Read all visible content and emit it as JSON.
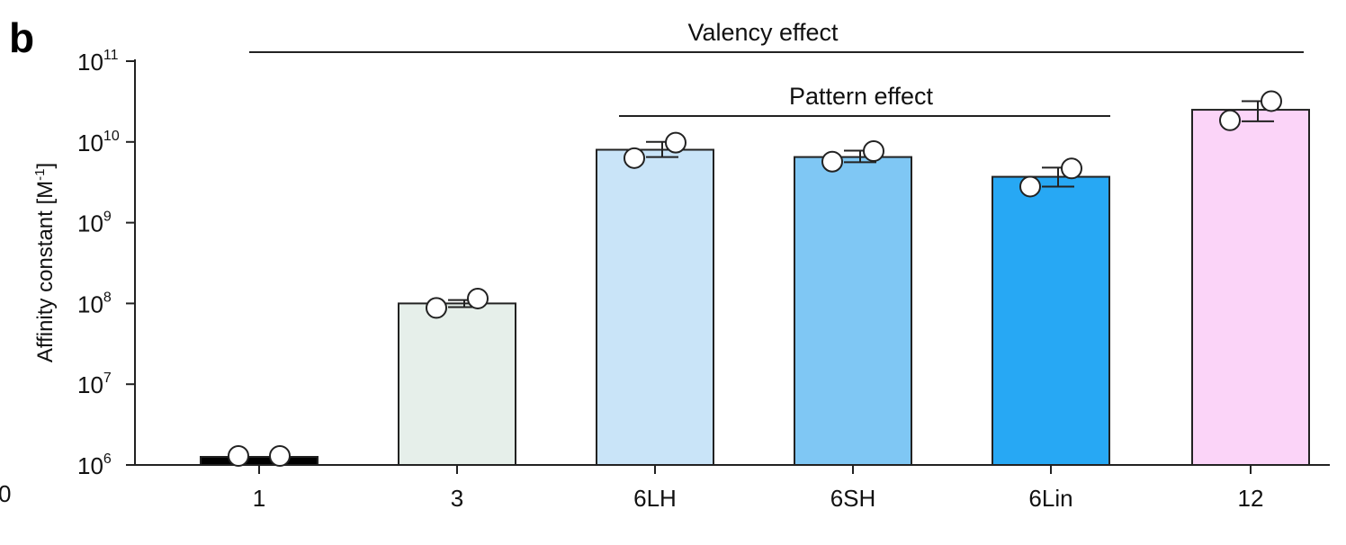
{
  "panel_label": "b",
  "left_fragment": "0",
  "chart_data": {
    "type": "bar",
    "ylabel": "Affinity constant [M",
    "ylabel_sup": "-1",
    "ylabel_close": "]",
    "yscale": "log",
    "ylim": [
      1000000,
      100000000000
    ],
    "y_ticks": [
      {
        "base": "10",
        "exp": "6",
        "value": 1000000
      },
      {
        "base": "10",
        "exp": "7",
        "value": 10000000
      },
      {
        "base": "10",
        "exp": "8",
        "value": 100000000
      },
      {
        "base": "10",
        "exp": "9",
        "value": 1000000000
      },
      {
        "base": "10",
        "exp": "10",
        "value": 10000000000
      },
      {
        "base": "10",
        "exp": "11",
        "value": 100000000000
      }
    ],
    "categories": [
      "1",
      "3",
      "6LH",
      "6SH",
      "6Lin",
      "12"
    ],
    "values": [
      1250000,
      100000000,
      8000000000,
      6500000000,
      3700000000,
      25000000000
    ],
    "error_low": [
      1200000,
      90000000,
      6500000000,
      5600000000,
      2800000000,
      18000000000
    ],
    "error_high": [
      1300000,
      110000000,
      10000000000,
      7800000000,
      4800000000,
      32000000000
    ],
    "points": [
      [
        1250000,
        1250000
      ],
      [
        88000000,
        115000000
      ],
      [
        6300000000,
        9800000000
      ],
      [
        5700000000,
        7700000000
      ],
      [
        2800000000,
        4700000000
      ],
      [
        18500000000,
        32000000000
      ]
    ],
    "colors": [
      "#000000",
      "#e6efea",
      "#c9e4f8",
      "#7fc7f4",
      "#27a8f4",
      "#fbd4f8"
    ],
    "annotations": [
      {
        "label": "Valency effect",
        "from_category": "1",
        "to_category": "12"
      },
      {
        "label": "Pattern effect",
        "from_category": "6LH",
        "to_category": "6Lin"
      }
    ]
  }
}
